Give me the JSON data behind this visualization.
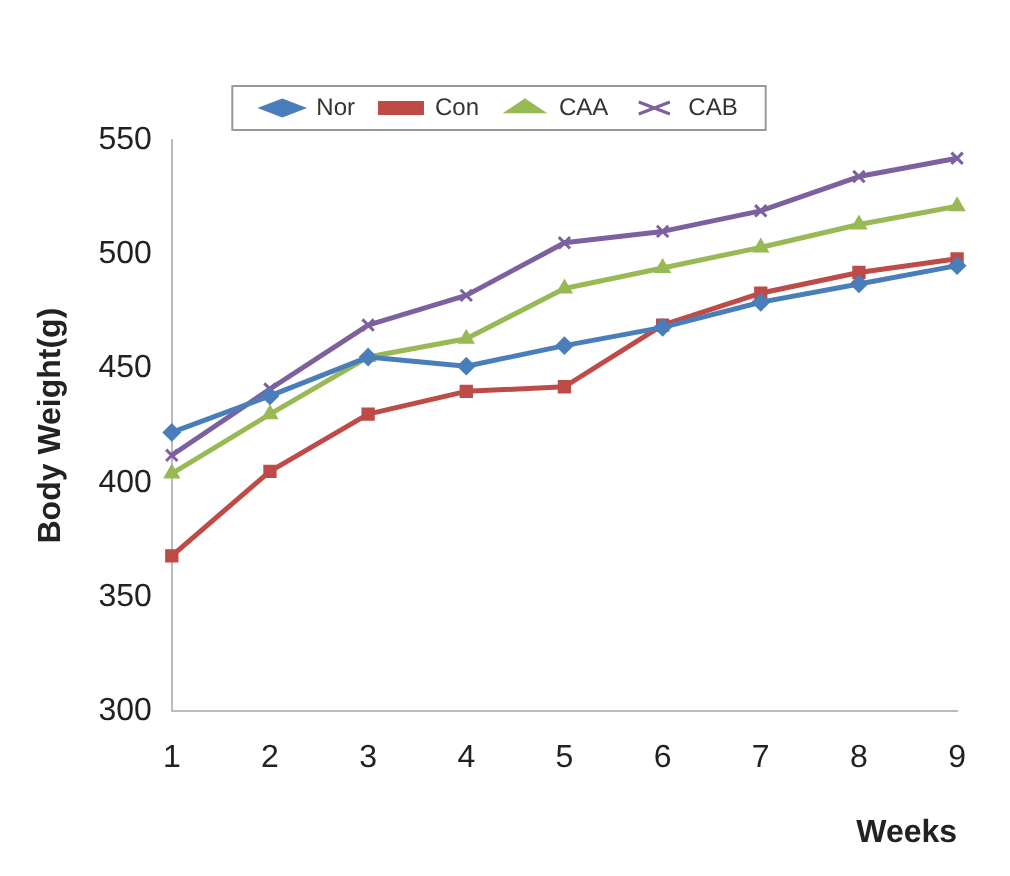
{
  "chart_data": {
    "type": "line",
    "xlabel": "Weeks",
    "ylabel": "Body Weight(g)",
    "categories": [
      "1",
      "2",
      "3",
      "4",
      "5",
      "6",
      "7",
      "8",
      "9"
    ],
    "series": [
      {
        "name": "Nor",
        "color": "#4a7ebb",
        "marker": "diamond",
        "values": [
          422,
          438,
          455,
          451,
          460,
          468,
          479,
          487,
          495
        ]
      },
      {
        "name": "Con",
        "color": "#be4b48",
        "marker": "square",
        "values": [
          368,
          405,
          430,
          440,
          442,
          469,
          483,
          492,
          498
        ]
      },
      {
        "name": "CAA",
        "color": "#98b954",
        "marker": "triangle",
        "values": [
          404,
          430,
          455,
          463,
          485,
          494,
          503,
          513,
          521
        ]
      },
      {
        "name": "CAB",
        "color": "#7d60a0",
        "marker": "cross",
        "values": [
          412,
          441,
          469,
          482,
          505,
          510,
          519,
          534,
          542
        ]
      }
    ],
    "ylim": [
      300,
      550
    ],
    "yticks": [
      300,
      350,
      400,
      450,
      500,
      550
    ],
    "grid": false,
    "legend": "top",
    "line_style": "solid"
  }
}
